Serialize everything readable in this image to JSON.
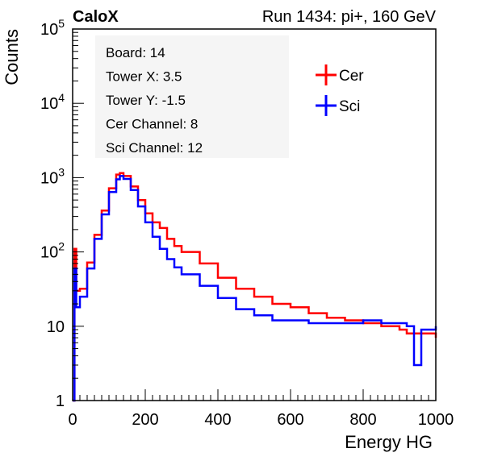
{
  "header": {
    "brand": "CaloX",
    "run_info": "Run 1434: pi+, 160 GeV"
  },
  "info_box": {
    "lines": [
      "Board: 14",
      "Tower X: 3.5",
      "Tower Y: -1.5",
      "Cer Channel: 8",
      "Sci Channel: 12"
    ]
  },
  "chart_data": {
    "type": "line",
    "title": "",
    "xlabel": "Energy HG",
    "ylabel": "Counts",
    "xlim": [
      0,
      1000
    ],
    "ylim": [
      1,
      100000
    ],
    "yscale": "log",
    "grid": false,
    "legend_position": "top-right",
    "x_ticks": [
      "0",
      "200",
      "400",
      "600",
      "800",
      "1000"
    ],
    "y_ticks": [
      {
        "base": "1",
        "exp": ""
      },
      {
        "base": "10",
        "exp": ""
      },
      {
        "base": "10",
        "exp": "2"
      },
      {
        "base": "10",
        "exp": "3"
      },
      {
        "base": "10",
        "exp": "4"
      },
      {
        "base": "10",
        "exp": "5"
      }
    ],
    "x": [
      0,
      5,
      10,
      20,
      40,
      60,
      80,
      100,
      120,
      130,
      140,
      160,
      180,
      200,
      220,
      240,
      260,
      280,
      300,
      350,
      400,
      450,
      500,
      550,
      600,
      650,
      700,
      750,
      800,
      850,
      900,
      920,
      940,
      960,
      980,
      1000
    ],
    "series": [
      {
        "name": "Cer",
        "color": "#ff0000",
        "values": [
          1,
          110,
          30,
          32,
          72,
          170,
          360,
          720,
          1100,
          1150,
          1050,
          760,
          500,
          330,
          250,
          210,
          150,
          120,
          100,
          70,
          45,
          32,
          25,
          20,
          18,
          15,
          13,
          12,
          11,
          10,
          9,
          8,
          8,
          8,
          8,
          7
        ]
      },
      {
        "name": "Sci",
        "color": "#0000ff",
        "values": [
          1,
          60,
          18,
          25,
          60,
          150,
          320,
          640,
          950,
          1050,
          960,
          680,
          410,
          250,
          160,
          110,
          80,
          62,
          50,
          35,
          24,
          17,
          14,
          12,
          12,
          11,
          11,
          11,
          12,
          11,
          11,
          10,
          3,
          9,
          9,
          10
        ]
      }
    ]
  }
}
